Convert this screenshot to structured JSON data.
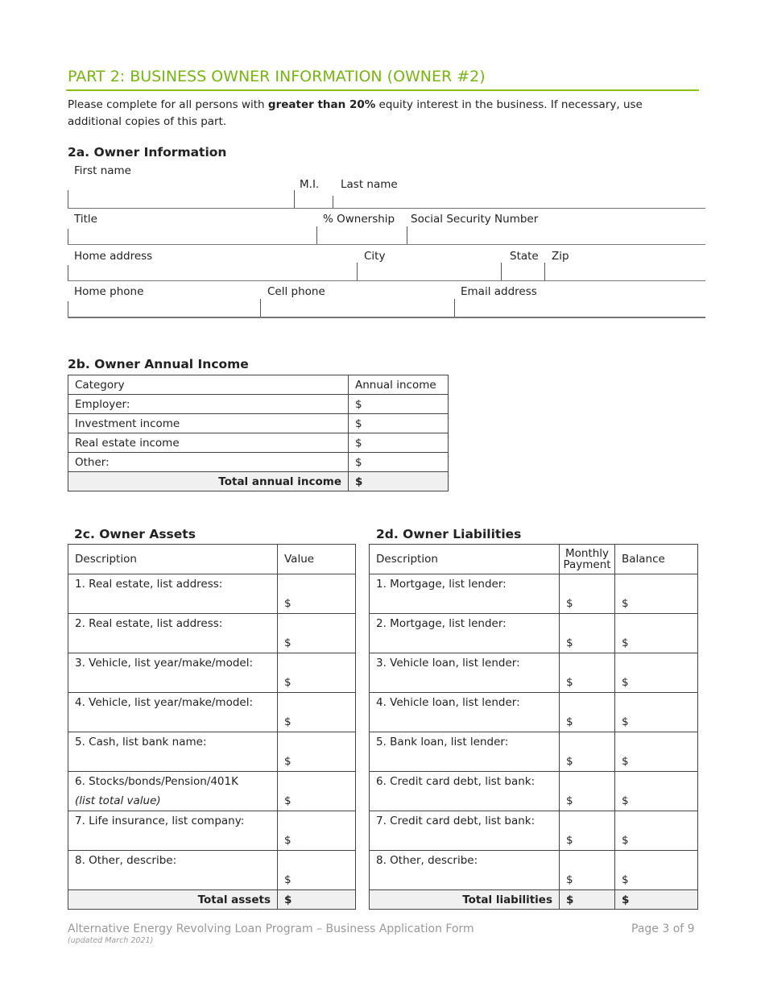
{
  "title": "PART 2: BUSINESS OWNER INFORMATION (OWNER #2)",
  "intro": {
    "before": "Please complete for all persons with ",
    "bold": "greater than 20%",
    "after": " equity interest in the business. If necessary, use additional copies of this part."
  },
  "owner_info": {
    "heading": "2a. Owner Information",
    "first_name": "First name",
    "mi": "M.I.",
    "last_name": "Last name",
    "title": "Title",
    "ownership": "% Ownership",
    "ssn": "Social Security Number",
    "home_address": "Home address",
    "city": "City",
    "state": "State",
    "zip": "Zip",
    "home_phone": "Home phone",
    "cell_phone": "Cell phone",
    "email": "Email address"
  },
  "income": {
    "heading": "2b. Owner Annual Income",
    "col_category": "Category",
    "col_income": "Annual income",
    "rows": [
      "Employer:",
      "Investment income",
      "Real estate income",
      "Other:"
    ],
    "currency": "$",
    "total_label": "Total annual income"
  },
  "assets": {
    "heading": "2c. Owner Assets",
    "col_desc": "Description",
    "col_value": "Value",
    "rows": [
      [
        "1. Real estate, list address:",
        ""
      ],
      [
        "2. Real estate, list address:",
        ""
      ],
      [
        "3. Vehicle, list year/make/model:",
        ""
      ],
      [
        "4. Vehicle, list year/make/model:",
        ""
      ],
      [
        "5. Cash, list bank name:",
        ""
      ],
      [
        "6. Stocks/bonds/Pension/401K",
        "(list total value)"
      ],
      [
        "7. Life insurance, list company:",
        ""
      ],
      [
        "8. Other, describe:",
        ""
      ]
    ],
    "currency": "$",
    "total_label": "Total assets"
  },
  "liabilities": {
    "heading": "2d. Owner Liabilities",
    "col_desc": "Description",
    "col_monthly": "Monthly Payment",
    "col_balance": "Balance",
    "rows": [
      "1. Mortgage, list lender:",
      "2. Mortgage, list lender:",
      "3. Vehicle loan, list lender:",
      "4. Vehicle loan, list lender:",
      "5. Bank loan, list lender:",
      "6. Credit card debt, list bank:",
      "7. Credit card debt, list bank:",
      "8. Other, describe:"
    ],
    "currency": "$",
    "total_label": "Total liabilities"
  },
  "footer": {
    "program": "Alternative Energy Revolving Loan Program – Business Application Form",
    "updated": "(updated March 2021)",
    "page": "Page 3 of 9"
  },
  "colors": {
    "accent": "#7ab317",
    "total_row_bg": "#f0f0f0"
  }
}
